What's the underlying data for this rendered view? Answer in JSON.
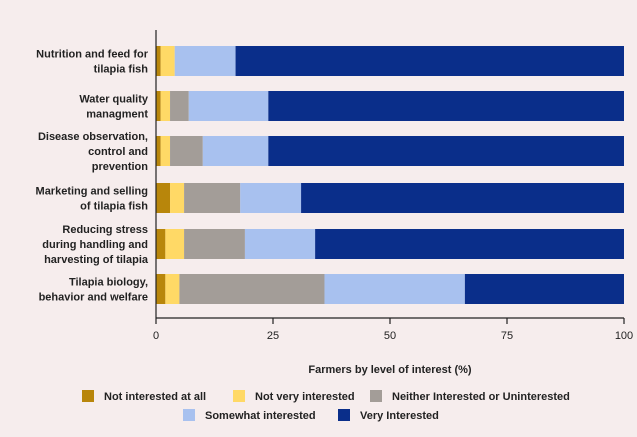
{
  "chart_data": {
    "type": "bar",
    "orientation": "horizontal",
    "stacked": true,
    "categories": [
      [
        "Nutrition and feed for",
        "tilapia fish"
      ],
      [
        "Water quality",
        "managment"
      ],
      [
        "Disease observation,",
        "control and",
        "prevention"
      ],
      [
        "Marketing and selling",
        "of tilapia fish"
      ],
      [
        "Reducing stress",
        "during handling and",
        "harvesting of tilapia"
      ],
      [
        "Tilapia biology,",
        "behavior and welfare"
      ]
    ],
    "series": [
      {
        "name": "Not interested at all",
        "color": "#b8860b",
        "values": [
          1,
          1,
          1,
          3,
          2,
          2
        ]
      },
      {
        "name": "Not very interested",
        "color": "#ffd966",
        "values": [
          3,
          2,
          2,
          3,
          4,
          3
        ]
      },
      {
        "name": "Neither Interested or Uninterested",
        "color": "#a39d98",
        "values": [
          0,
          4,
          7,
          12,
          13,
          31
        ]
      },
      {
        "name": "Somewhat interested",
        "color": "#a8c1ef",
        "values": [
          13,
          17,
          14,
          13,
          15,
          30
        ]
      },
      {
        "name": "Very Interested",
        "color": "#0a2e8a",
        "values": [
          83,
          76,
          76,
          69,
          66,
          34
        ]
      }
    ],
    "xlabel": "Farmers by level of interest (%)",
    "xlim": [
      0,
      100
    ],
    "xticks": [
      0,
      25,
      50,
      75,
      100
    ],
    "grid": false,
    "legend_position": "bottom"
  }
}
